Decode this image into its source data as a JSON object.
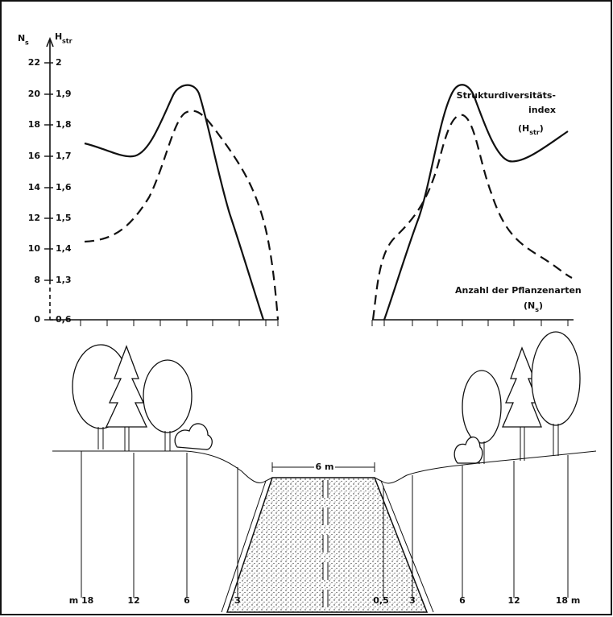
{
  "axes": {
    "left_symbol": "N",
    "left_sub": "s",
    "right_symbol": "H",
    "right_sub": "str",
    "left_ticks": [
      "22",
      "20",
      "18",
      "16",
      "14",
      "12",
      "10",
      "8",
      "0"
    ],
    "right_ticks": [
      "2",
      "1,9",
      "1,8",
      "1,7",
      "1,6",
      "1,5",
      "1,4",
      "1,3",
      "0,6"
    ]
  },
  "annotations": {
    "diversity_line1": "Strukturdiversitäts-",
    "diversity_line2": "index",
    "diversity_symbol": "(H",
    "diversity_sub": "str",
    "close": ")",
    "species": "Anzahl der Pflanzenarten",
    "species_symbol": "(N",
    "species_sub": "s"
  },
  "road_width": "6 m",
  "distances": [
    "m 18",
    "12",
    "6",
    "3",
    "0,5",
    "3",
    "6",
    "12",
    "18 m"
  ]
}
